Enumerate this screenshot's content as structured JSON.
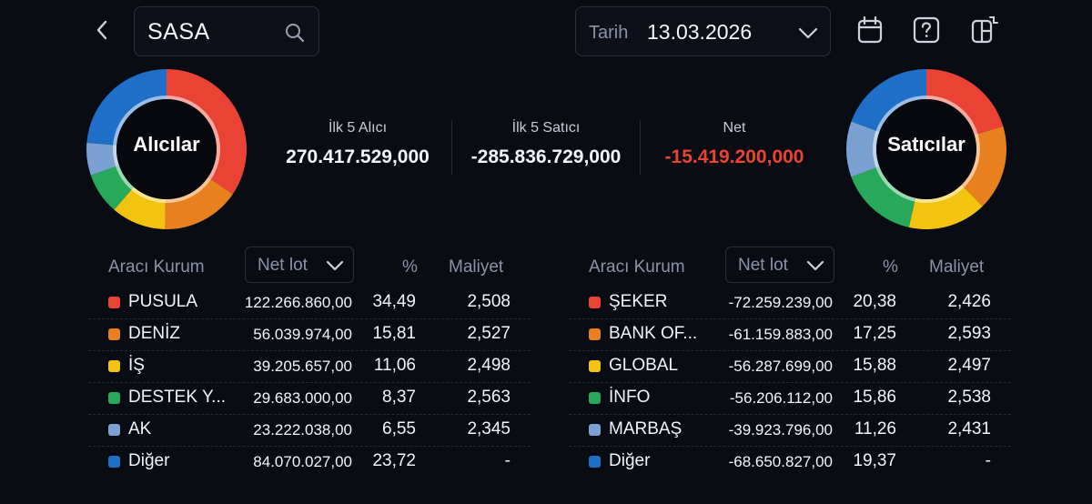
{
  "header": {
    "back_icon": "chevron-left-icon",
    "search": {
      "value": "SASA",
      "icon": "search-icon"
    },
    "date": {
      "label": "Tarih",
      "value": "13.03.2026",
      "icon": "chevron-down-icon"
    },
    "icons": [
      "calendar-icon",
      "help-icon",
      "layout-toggle-icon"
    ]
  },
  "colors": {
    "red": "#ea4335",
    "orange": "#e8801d",
    "yellow": "#f2c40f",
    "green": "#27a85a",
    "lightblue": "#7ba1d3",
    "blue": "#1f6fc8",
    "negative": "#ea4335"
  },
  "buyers_donut": {
    "label": "Alıcılar",
    "segments": [
      {
        "name": "PUSULA",
        "percent": 34.49,
        "color": "#ea4335"
      },
      {
        "name": "DENİZ",
        "percent": 15.81,
        "color": "#e8801d"
      },
      {
        "name": "İŞ",
        "percent": 11.06,
        "color": "#f2c40f"
      },
      {
        "name": "DESTEK Y...",
        "percent": 8.37,
        "color": "#27a85a"
      },
      {
        "name": "AK",
        "percent": 6.55,
        "color": "#7ba1d3"
      },
      {
        "name": "Diğer",
        "percent": 23.72,
        "color": "#1f6fc8"
      }
    ]
  },
  "sellers_donut": {
    "label": "Satıcılar",
    "segments": [
      {
        "name": "ŞEKER",
        "percent": 20.38,
        "color": "#ea4335"
      },
      {
        "name": "BANK OF...",
        "percent": 17.25,
        "color": "#e8801d"
      },
      {
        "name": "GLOBAL",
        "percent": 15.88,
        "color": "#f2c40f"
      },
      {
        "name": "İNFO",
        "percent": 15.86,
        "color": "#27a85a"
      },
      {
        "name": "MARBAŞ",
        "percent": 11.26,
        "color": "#7ba1d3"
      },
      {
        "name": "Diğer",
        "percent": 19.37,
        "color": "#1f6fc8"
      }
    ]
  },
  "summary": {
    "buyers": {
      "title": "İlk 5 Alıcı",
      "value": "270.417.529,000"
    },
    "sellers": {
      "title": "İlk 5 Satıcı",
      "value": "-285.836.729,000"
    },
    "net": {
      "title": "Net",
      "value": "-15.419.200,000"
    }
  },
  "buyers_table": {
    "headers": {
      "broker": "Aracı Kurum",
      "sort": "Net lot",
      "pct": "%",
      "cost": "Maliyet"
    },
    "rows": [
      {
        "name": "PUSULA",
        "lot": "122.266.860,00",
        "pct": "34,49",
        "cost": "2,508",
        "color": "#ea4335"
      },
      {
        "name": "DENİZ",
        "lot": "56.039.974,00",
        "pct": "15,81",
        "cost": "2,527",
        "color": "#e8801d"
      },
      {
        "name": "İŞ",
        "lot": "39.205.657,00",
        "pct": "11,06",
        "cost": "2,498",
        "color": "#f2c40f"
      },
      {
        "name": "DESTEK Y...",
        "lot": "29.683.000,00",
        "pct": "8,37",
        "cost": "2,563",
        "color": "#27a85a"
      },
      {
        "name": "AK",
        "lot": "23.222.038,00",
        "pct": "6,55",
        "cost": "2,345",
        "color": "#7ba1d3"
      },
      {
        "name": "Diğer",
        "lot": "84.070.027,00",
        "pct": "23,72",
        "cost": "-",
        "color": "#1f6fc8"
      }
    ]
  },
  "sellers_table": {
    "headers": {
      "broker": "Aracı Kurum",
      "sort": "Net lot",
      "pct": "%",
      "cost": "Maliyet"
    },
    "rows": [
      {
        "name": "ŞEKER",
        "lot": "-72.259.239,00",
        "pct": "20,38",
        "cost": "2,426",
        "color": "#ea4335"
      },
      {
        "name": "BANK OF...",
        "lot": "-61.159.883,00",
        "pct": "17,25",
        "cost": "2,593",
        "color": "#e8801d"
      },
      {
        "name": "GLOBAL",
        "lot": "-56.287.699,00",
        "pct": "15,88",
        "cost": "2,497",
        "color": "#f2c40f"
      },
      {
        "name": "İNFO",
        "lot": "-56.206.112,00",
        "pct": "15,86",
        "cost": "2,538",
        "color": "#27a85a"
      },
      {
        "name": "MARBAŞ",
        "lot": "-39.923.796,00",
        "pct": "11,26",
        "cost": "2,431",
        "color": "#7ba1d3"
      },
      {
        "name": "Diğer",
        "lot": "-68.650.827,00",
        "pct": "19,37",
        "cost": "-",
        "color": "#1f6fc8"
      }
    ]
  }
}
